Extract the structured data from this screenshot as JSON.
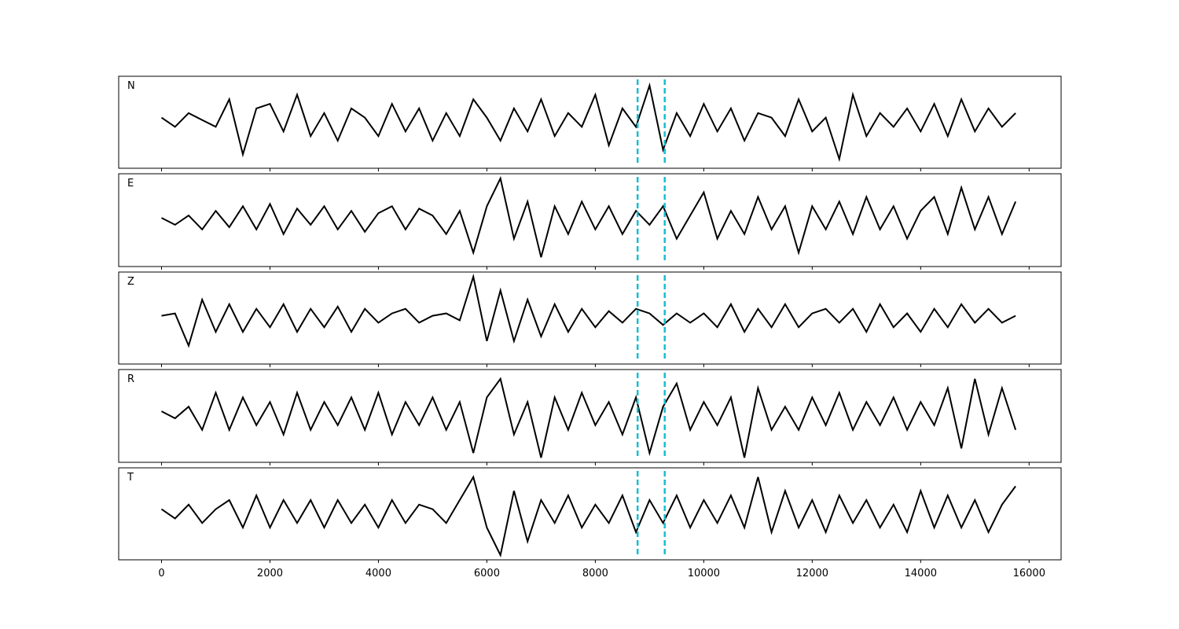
{
  "chart_data": {
    "type": "line",
    "x": [
      0,
      250,
      500,
      750,
      1000,
      1250,
      1500,
      1750,
      2000,
      2250,
      2500,
      2750,
      3000,
      3250,
      3500,
      3750,
      4000,
      4250,
      4500,
      4750,
      5000,
      5250,
      5500,
      5750,
      6000,
      6250,
      6500,
      6750,
      7000,
      7250,
      7500,
      7750,
      8000,
      8250,
      8500,
      8750,
      9000,
      9250,
      9500,
      9750,
      10000,
      10250,
      10500,
      10750,
      11000,
      11250,
      11500,
      11750,
      12000,
      12250,
      12500,
      12750,
      13000,
      13250,
      13500,
      13750,
      14000,
      14250,
      14500,
      14750,
      15000,
      15250,
      15500,
      15750
    ],
    "series": [
      {
        "name": "N",
        "color": "#000000",
        "values": [
          0.1,
          -0.1,
          0.2,
          0.05,
          -0.1,
          0.5,
          -0.7,
          0.3,
          0.4,
          -0.2,
          0.6,
          -0.3,
          0.2,
          -0.4,
          0.3,
          0.1,
          -0.3,
          0.4,
          -0.2,
          0.3,
          -0.4,
          0.2,
          -0.3,
          0.5,
          0.1,
          -0.4,
          0.3,
          -0.2,
          0.5,
          -0.3,
          0.2,
          -0.1,
          0.6,
          -0.5,
          0.3,
          -0.1,
          0.8,
          -0.6,
          0.2,
          -0.3,
          0.4,
          -0.2,
          0.3,
          -0.4,
          0.2,
          0.1,
          -0.3,
          0.5,
          -0.2,
          0.1,
          -0.8,
          0.6,
          -0.3,
          0.2,
          -0.1,
          0.3,
          -0.2,
          0.4,
          -0.3,
          0.5,
          -0.2,
          0.3,
          -0.1,
          0.2
        ]
      },
      {
        "name": "E",
        "color": "#000000",
        "values": [
          0.05,
          -0.1,
          0.1,
          -0.2,
          0.2,
          -0.15,
          0.3,
          -0.2,
          0.35,
          -0.3,
          0.25,
          -0.1,
          0.3,
          -0.2,
          0.2,
          -0.25,
          0.15,
          0.3,
          -0.2,
          0.25,
          0.1,
          -0.3,
          0.2,
          -0.7,
          0.3,
          0.9,
          -0.4,
          0.4,
          -0.8,
          0.3,
          -0.3,
          0.4,
          -0.2,
          0.3,
          -0.3,
          0.2,
          -0.1,
          0.3,
          -0.4,
          0.1,
          0.6,
          -0.4,
          0.2,
          -0.3,
          0.5,
          -0.2,
          0.3,
          -0.7,
          0.3,
          -0.2,
          0.4,
          -0.3,
          0.5,
          -0.2,
          0.3,
          -0.4,
          0.2,
          0.5,
          -0.3,
          0.7,
          -0.2,
          0.5,
          -0.3,
          0.4
        ]
      },
      {
        "name": "Z",
        "color": "#000000",
        "values": [
          0.05,
          0.1,
          -0.6,
          0.4,
          -0.3,
          0.3,
          -0.3,
          0.2,
          -0.2,
          0.3,
          -0.3,
          0.2,
          -0.2,
          0.25,
          -0.3,
          0.2,
          -0.1,
          0.1,
          0.2,
          -0.1,
          0.05,
          0.1,
          -0.05,
          0.9,
          -0.5,
          0.6,
          -0.5,
          0.4,
          -0.4,
          0.3,
          -0.3,
          0.2,
          -0.2,
          0.15,
          -0.1,
          0.2,
          0.1,
          -0.15,
          0.1,
          -0.1,
          0.1,
          -0.2,
          0.3,
          -0.3,
          0.2,
          -0.2,
          0.3,
          -0.2,
          0.1,
          0.2,
          -0.1,
          0.2,
          -0.3,
          0.3,
          -0.2,
          0.1,
          -0.3,
          0.2,
          -0.2,
          0.3,
          -0.1,
          0.2,
          -0.1,
          0.05
        ]
      },
      {
        "name": "R",
        "color": "#000000",
        "values": [
          0.1,
          -0.05,
          0.2,
          -0.3,
          0.5,
          -0.3,
          0.4,
          -0.2,
          0.3,
          -0.4,
          0.5,
          -0.3,
          0.3,
          -0.2,
          0.4,
          -0.3,
          0.5,
          -0.4,
          0.3,
          -0.2,
          0.4,
          -0.3,
          0.3,
          -0.8,
          0.4,
          0.8,
          -0.4,
          0.3,
          -0.9,
          0.4,
          -0.3,
          0.5,
          -0.2,
          0.3,
          -0.4,
          0.4,
          -0.8,
          0.2,
          0.7,
          -0.3,
          0.3,
          -0.2,
          0.4,
          -0.9,
          0.6,
          -0.3,
          0.2,
          -0.3,
          0.4,
          -0.2,
          0.5,
          -0.3,
          0.3,
          -0.2,
          0.4,
          -0.3,
          0.3,
          -0.2,
          0.6,
          -0.7,
          0.8,
          -0.4,
          0.6,
          -0.3
        ]
      },
      {
        "name": "T",
        "color": "#000000",
        "values": [
          0.1,
          -0.1,
          0.2,
          -0.2,
          0.1,
          0.3,
          -0.3,
          0.4,
          -0.3,
          0.3,
          -0.2,
          0.3,
          -0.3,
          0.3,
          -0.2,
          0.2,
          -0.3,
          0.3,
          -0.2,
          0.2,
          0.1,
          -0.2,
          0.3,
          0.8,
          -0.3,
          -0.9,
          0.5,
          -0.6,
          0.3,
          -0.2,
          0.4,
          -0.3,
          0.2,
          -0.2,
          0.4,
          -0.4,
          0.3,
          -0.2,
          0.4,
          -0.3,
          0.3,
          -0.2,
          0.4,
          -0.3,
          0.8,
          -0.4,
          0.5,
          -0.3,
          0.3,
          -0.4,
          0.4,
          -0.2,
          0.3,
          -0.3,
          0.2,
          -0.4,
          0.5,
          -0.3,
          0.4,
          -0.3,
          0.3,
          -0.4,
          0.2,
          0.6
        ]
      }
    ],
    "xlim": [
      -790,
      16590
    ],
    "xticks": [
      0,
      2000,
      4000,
      6000,
      8000,
      10000,
      12000,
      14000,
      16000
    ],
    "ylim": [
      -1,
      1
    ],
    "vlines": [
      8780,
      9280
    ],
    "vline_color": "#17becf"
  }
}
